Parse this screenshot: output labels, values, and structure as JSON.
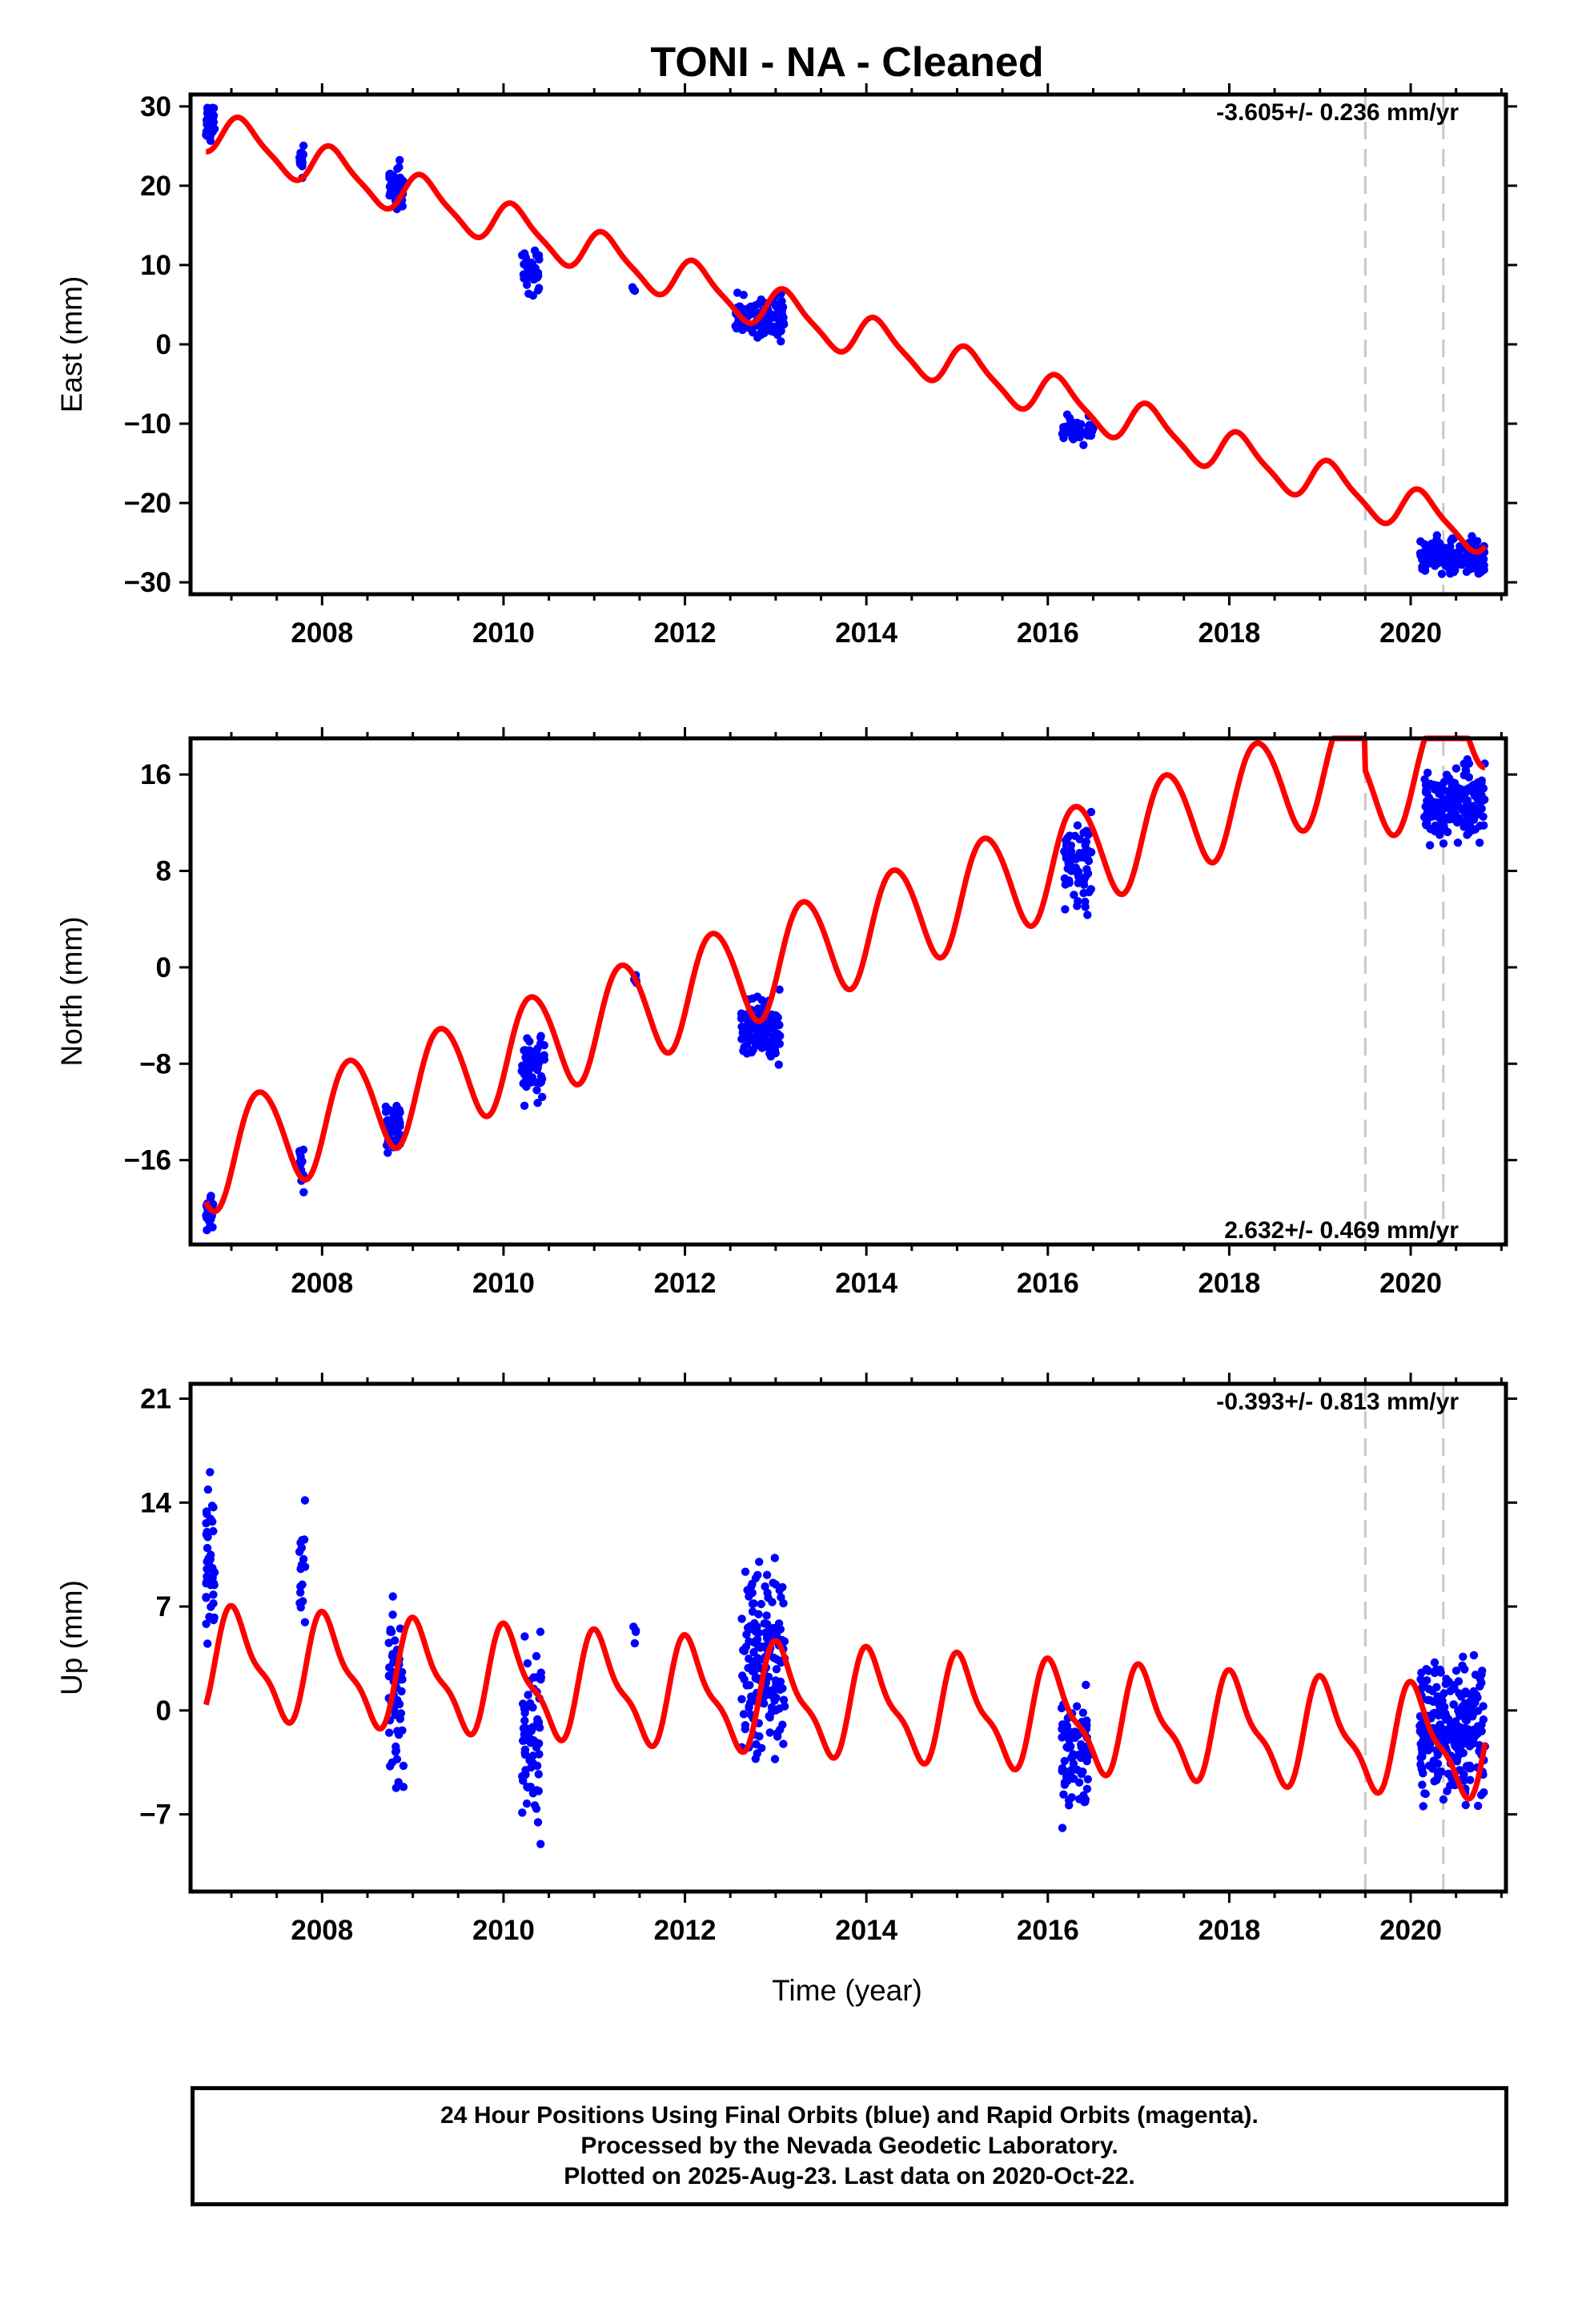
{
  "figure": {
    "title": "TONI  - NA - Cleaned",
    "xlabel": "Time (year)"
  },
  "caption": {
    "line1": "24 Hour Positions Using Final Orbits (blue) and Rapid Orbits (magenta).",
    "line2": "Processed by the Nevada Geodetic Laboratory.",
    "line3": "Plotted on 2025-Aug-23. Last data on 2020-Oct-22."
  },
  "colors": {
    "data": "#0000ff",
    "model": "#ff0000",
    "break_lines": "#c8c8c8",
    "axes": "#000000"
  },
  "chart_data": [
    {
      "type": "scatter",
      "component": "East",
      "ylabel": "East (mm)",
      "rate_text": "-3.605+/- 0.236 mm/yr",
      "xlim": [
        2006.55,
        2021.05
      ],
      "ylim": [
        -31.5,
        31.5
      ],
      "xticks": [
        2008,
        2010,
        2012,
        2014,
        2016,
        2018,
        2020
      ],
      "yticks": [
        30,
        20,
        10,
        0,
        -10,
        -20,
        -30
      ],
      "breaks": [
        2019.5,
        2020.36
      ],
      "data_clusters": [
        {
          "t_start": 2006.72,
          "t_end": 2006.82,
          "mean": 28.0,
          "spread": 1.6,
          "n": 40
        },
        {
          "t_start": 2007.75,
          "t_end": 2007.8,
          "mean": 23.0,
          "spread": 1.2,
          "n": 12
        },
        {
          "t_start": 2008.74,
          "t_end": 2008.9,
          "mean": 20.0,
          "spread": 1.8,
          "n": 40
        },
        {
          "t_start": 2010.2,
          "t_end": 2010.42,
          "mean": 9.0,
          "spread": 2.0,
          "n": 45
        },
        {
          "t_start": 2011.42,
          "t_end": 2011.45,
          "mean": 7.0,
          "spread": 0.5,
          "n": 4
        },
        {
          "t_start": 2012.55,
          "t_end": 2013.1,
          "mean": 3.5,
          "spread": 1.8,
          "n": 110
        },
        {
          "t_start": 2016.15,
          "t_end": 2016.5,
          "mean": -11.0,
          "spread": 1.2,
          "n": 60
        },
        {
          "t_start": 2020.1,
          "t_end": 2020.82,
          "mean": -26.8,
          "spread": 1.8,
          "n": 160
        }
      ],
      "model": {
        "t0": 2006.72,
        "c0": 27.0,
        "rate": -3.605,
        "ann_amp": 2.6,
        "ann_phase": 0.7,
        "semi_amp": 0.6,
        "semi_phase": 1.2,
        "steps": [
          {
            "t": 2019.5,
            "size": 0.0
          }
        ]
      }
    },
    {
      "type": "scatter",
      "component": "North",
      "ylabel": "North (mm)",
      "rate_text": "2.632+/- 0.469 mm/yr",
      "xlim": [
        2006.55,
        2021.05
      ],
      "ylim": [
        -23.0,
        19.0
      ],
      "xticks": [
        2008,
        2010,
        2012,
        2014,
        2016,
        2018,
        2020
      ],
      "yticks": [
        16,
        8,
        0,
        -8,
        -16
      ],
      "breaks": [
        2019.5,
        2020.36
      ],
      "data_clusters": [
        {
          "t_start": 2006.72,
          "t_end": 2006.8,
          "mean": -20.5,
          "spread": 1.3,
          "n": 25
        },
        {
          "t_start": 2007.75,
          "t_end": 2007.8,
          "mean": -16.5,
          "spread": 1.4,
          "n": 12
        },
        {
          "t_start": 2008.7,
          "t_end": 2008.88,
          "mean": -13.0,
          "spread": 1.8,
          "n": 45
        },
        {
          "t_start": 2010.2,
          "t_end": 2010.45,
          "mean": -8.5,
          "spread": 2.0,
          "n": 55
        },
        {
          "t_start": 2011.44,
          "t_end": 2011.47,
          "mean": -0.8,
          "spread": 0.4,
          "n": 5
        },
        {
          "t_start": 2012.62,
          "t_end": 2013.05,
          "mean": -4.8,
          "spread": 1.8,
          "n": 120
        },
        {
          "t_start": 2016.18,
          "t_end": 2016.48,
          "mean": 8.5,
          "spread": 3.0,
          "n": 70
        },
        {
          "t_start": 2020.15,
          "t_end": 2020.82,
          "mean": 13.5,
          "spread": 2.4,
          "n": 170
        }
      ],
      "model": {
        "t0": 2006.72,
        "c0": -16.0,
        "rate": 2.632,
        "ann_amp": 4.3,
        "ann_phase": -0.4,
        "semi_amp": 0.3,
        "semi_phase": 0.0,
        "steps": [
          {
            "t": 2019.5,
            "size": -3.0
          },
          {
            "t": 2020.36,
            "size": 3.0
          }
        ]
      }
    },
    {
      "type": "scatter",
      "component": "Up",
      "ylabel": "Up (mm)",
      "rate_text": "-0.393+/- 0.813 mm/yr",
      "xlim": [
        2006.55,
        2021.05
      ],
      "ylim": [
        -12.2,
        22.0
      ],
      "xticks": [
        2008,
        2010,
        2012,
        2014,
        2016,
        2018,
        2020
      ],
      "yticks": [
        21,
        14,
        7,
        0,
        -7
      ],
      "breaks": [
        2019.5,
        2020.36
      ],
      "data_clusters": [
        {
          "t_start": 2006.72,
          "t_end": 2006.82,
          "mean": 10.0,
          "spread": 3.6,
          "n": 45
        },
        {
          "t_start": 2007.75,
          "t_end": 2007.82,
          "mean": 10.0,
          "spread": 3.5,
          "n": 18
        },
        {
          "t_start": 2008.72,
          "t_end": 2008.9,
          "mean": 1.5,
          "spread": 4.5,
          "n": 55
        },
        {
          "t_start": 2010.2,
          "t_end": 2010.42,
          "mean": -2.0,
          "spread": 5.0,
          "n": 70
        },
        {
          "t_start": 2011.42,
          "t_end": 2011.46,
          "mean": 5.0,
          "spread": 1.0,
          "n": 4
        },
        {
          "t_start": 2012.62,
          "t_end": 2013.1,
          "mean": 3.5,
          "spread": 4.5,
          "n": 160
        },
        {
          "t_start": 2016.15,
          "t_end": 2016.45,
          "mean": -3.0,
          "spread": 3.0,
          "n": 85
        },
        {
          "t_start": 2020.1,
          "t_end": 2020.82,
          "mean": -1.5,
          "spread": 3.5,
          "n": 260
        }
      ],
      "model": {
        "t0": 2006.72,
        "c0": 3.2,
        "rate": -0.393,
        "ann_amp": 3.3,
        "ann_phase": 1.2,
        "semi_amp": 1.1,
        "semi_phase": 2.2,
        "steps": [
          {
            "t": 2019.5,
            "size": 0.0
          }
        ]
      }
    }
  ]
}
